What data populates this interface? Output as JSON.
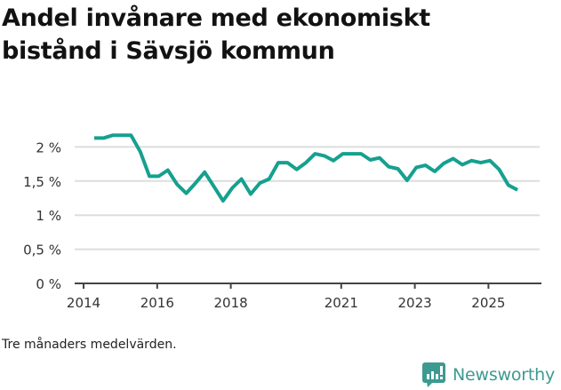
{
  "title": "Andel invånare med ekonomiskt bistånd i Sävsjö kommun",
  "title_lines": [
    "Andel invånare med ekonomiskt",
    "bistånd i Sävsjö kommun"
  ],
  "footnote": "Tre månaders medelvärden.",
  "brand": {
    "name": "Newsworthy",
    "icon": "newsworthy-logo-icon",
    "color": "#3d9a90"
  },
  "colors": {
    "line": "#16a08f",
    "grid": "#dddddd",
    "axis": "#444444",
    "text": "#333333"
  },
  "chart_data": {
    "type": "line",
    "title": "Andel invånare med ekonomiskt bistånd i Sävsjö kommun",
    "xlabel": "",
    "ylabel": "",
    "ylim": [
      0,
      2.2
    ],
    "xlim": [
      2014,
      2026.5
    ],
    "grid": true,
    "legend": null,
    "y_ticks": [
      0,
      0.5,
      1,
      1.5,
      2
    ],
    "y_tick_labels": [
      "0 %",
      "0,5 %",
      "1 %",
      "1,5 %",
      "2 %"
    ],
    "x_ticks": [
      2014,
      2016,
      2018,
      2021,
      2023,
      2025
    ],
    "x_tick_labels": [
      "2014",
      "2016",
      "2018",
      "2021",
      "2023",
      "2025"
    ],
    "annotation": "Tre månaders medelvärden.",
    "series": [
      {
        "name": "Andel invånare med ekonomiskt bistånd",
        "x_start": 2014.29,
        "x_step": 0.25,
        "values": [
          2.13,
          2.13,
          2.17,
          2.17,
          2.17,
          1.93,
          1.57,
          1.57,
          1.66,
          1.45,
          1.32,
          1.47,
          1.63,
          1.42,
          1.21,
          1.4,
          1.53,
          1.31,
          1.47,
          1.53,
          1.77,
          1.77,
          1.67,
          1.77,
          1.9,
          1.87,
          1.8,
          1.9,
          1.9,
          1.9,
          1.81,
          1.84,
          1.71,
          1.68,
          1.51,
          1.7,
          1.73,
          1.64,
          1.76,
          1.83,
          1.74,
          1.8,
          1.77,
          1.8,
          1.67,
          1.44,
          1.37
        ]
      }
    ]
  }
}
